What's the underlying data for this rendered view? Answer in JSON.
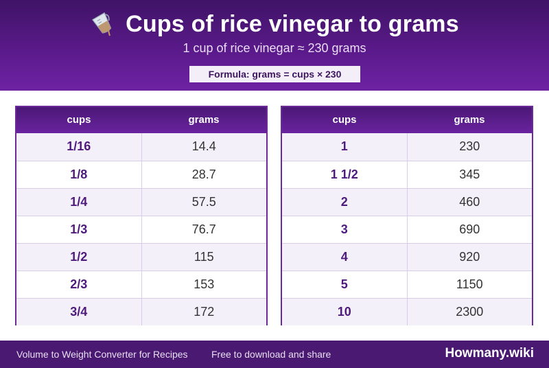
{
  "header": {
    "title": "Cups of rice vinegar to grams",
    "subtitle": "1 cup of rice vinegar ≈ 230 grams",
    "formula": "Formula: grams = cups × 230",
    "icon": "measuring-cup-pouring-icon"
  },
  "tables": [
    {
      "headers": {
        "cups": "cups",
        "grams": "grams"
      },
      "rows": [
        {
          "cups": "1/16",
          "grams": "14.4"
        },
        {
          "cups": "1/8",
          "grams": "28.7"
        },
        {
          "cups": "1/4",
          "grams": "57.5"
        },
        {
          "cups": "1/3",
          "grams": "76.7"
        },
        {
          "cups": "1/2",
          "grams": "115"
        },
        {
          "cups": "2/3",
          "grams": "153"
        },
        {
          "cups": "3/4",
          "grams": "172"
        }
      ]
    },
    {
      "headers": {
        "cups": "cups",
        "grams": "grams"
      },
      "rows": [
        {
          "cups": "1",
          "grams": "230"
        },
        {
          "cups": "1 1/2",
          "grams": "345"
        },
        {
          "cups": "2",
          "grams": "460"
        },
        {
          "cups": "3",
          "grams": "690"
        },
        {
          "cups": "4",
          "grams": "920"
        },
        {
          "cups": "5",
          "grams": "1150"
        },
        {
          "cups": "10",
          "grams": "2300"
        }
      ]
    }
  ],
  "footer": {
    "left_text": "Volume to Weight Converter for Recipes",
    "middle_text": "Free to download and share",
    "brand": "Howmany.wiki"
  },
  "colors": {
    "header_dark": "#3f1366",
    "header_light": "#6e22a3",
    "accent_text": "#4e1a7c",
    "footer_bg": "#4a1a72"
  }
}
